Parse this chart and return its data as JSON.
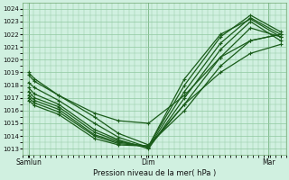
{
  "title": "Pression niveau de la mer( hPa )",
  "bg_color": "#d0f0e0",
  "grid_color": "#90c8a0",
  "line_color": "#1a5c1a",
  "ylim": [
    1012.5,
    1024.5
  ],
  "yticks": [
    1013,
    1014,
    1015,
    1016,
    1017,
    1018,
    1019,
    1020,
    1021,
    1022,
    1023,
    1024
  ],
  "xtick_labels": [
    "Samlun",
    "Dim",
    "Mar"
  ],
  "xtick_positions": [
    0.0,
    1.0,
    2.0
  ],
  "figsize": [
    3.2,
    2.0
  ],
  "dpi": 100,
  "lines": [
    {
      "x": [
        0.0,
        0.05,
        0.25,
        0.55,
        0.75,
        1.0,
        1.3,
        1.6,
        1.85,
        2.1
      ],
      "y": [
        1019.0,
        1018.5,
        1017.2,
        1015.5,
        1014.2,
        1013.3,
        1016.0,
        1019.5,
        1021.5,
        1022.0
      ]
    },
    {
      "x": [
        0.0,
        0.05,
        0.25,
        0.55,
        0.75,
        1.0,
        1.3,
        1.6,
        1.85,
        2.1
      ],
      "y": [
        1018.2,
        1017.8,
        1016.8,
        1015.0,
        1013.9,
        1013.1,
        1016.5,
        1020.2,
        1022.5,
        1021.8
      ]
    },
    {
      "x": [
        0.0,
        0.05,
        0.25,
        0.55,
        0.75,
        1.0,
        1.3,
        1.6,
        1.85,
        2.1
      ],
      "y": [
        1017.8,
        1017.3,
        1016.5,
        1014.5,
        1013.7,
        1013.0,
        1017.0,
        1020.8,
        1023.0,
        1021.5
      ]
    },
    {
      "x": [
        0.0,
        0.05,
        0.25,
        0.55,
        0.75,
        1.0,
        1.3,
        1.6,
        1.85,
        2.1
      ],
      "y": [
        1017.5,
        1017.0,
        1016.3,
        1014.3,
        1013.6,
        1013.1,
        1017.5,
        1021.3,
        1023.3,
        1022.0
      ]
    },
    {
      "x": [
        0.0,
        0.05,
        0.25,
        0.55,
        0.75,
        1.0,
        1.3,
        1.6,
        1.85,
        2.1
      ],
      "y": [
        1017.2,
        1016.8,
        1016.1,
        1014.1,
        1013.5,
        1013.2,
        1018.0,
        1021.8,
        1023.5,
        1022.2
      ]
    },
    {
      "x": [
        0.0,
        0.05,
        0.25,
        0.55,
        0.75,
        1.0,
        1.3,
        1.6,
        1.85,
        2.1
      ],
      "y": [
        1017.0,
        1016.6,
        1015.9,
        1014.0,
        1013.4,
        1013.2,
        1018.5,
        1022.0,
        1023.2,
        1021.8
      ]
    },
    {
      "x": [
        0.0,
        0.05,
        0.25,
        0.55,
        0.75,
        1.0,
        1.3,
        1.6,
        1.85,
        2.1
      ],
      "y": [
        1016.8,
        1016.4,
        1015.7,
        1013.8,
        1013.3,
        1013.2,
        1016.5,
        1019.0,
        1020.5,
        1021.2
      ]
    },
    {
      "x": [
        0.0,
        0.05,
        0.25,
        0.55,
        0.75,
        1.0,
        1.3,
        1.6,
        1.85,
        2.1
      ],
      "y": [
        1018.8,
        1018.3,
        1017.2,
        1015.8,
        1015.2,
        1015.0,
        1017.2,
        1020.2,
        1021.5,
        1022.0
      ]
    }
  ]
}
